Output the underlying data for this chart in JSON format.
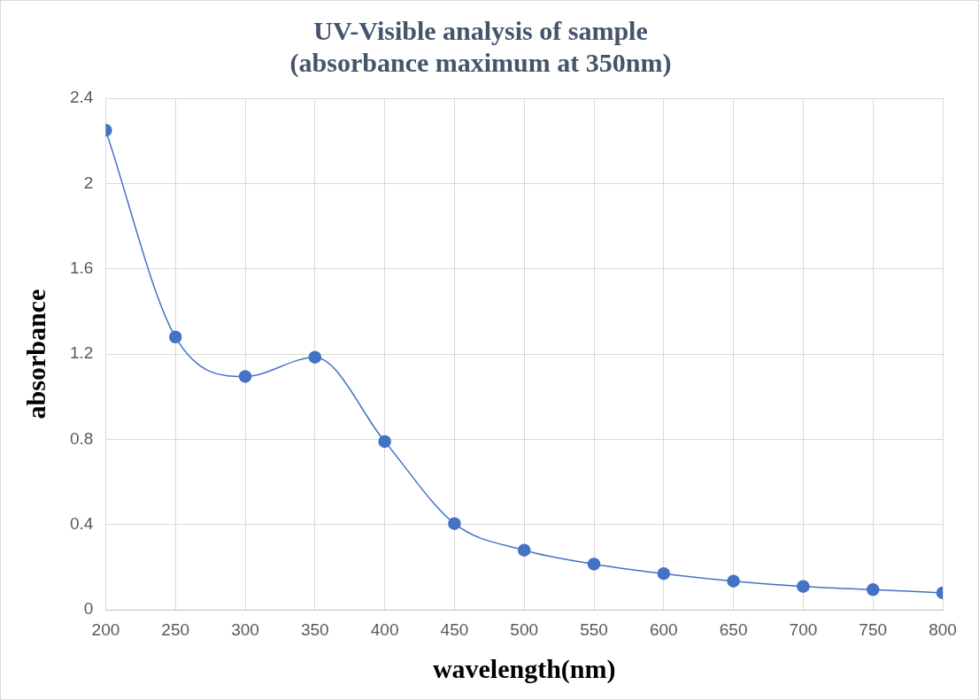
{
  "chart_data": {
    "type": "line",
    "title": "UV-Visible analysis of sample\n(absorbance maximum at 350nm)",
    "xlabel": "wavelength(nm)",
    "ylabel": "absorbance",
    "x": [
      200,
      250,
      300,
      350,
      400,
      450,
      500,
      550,
      600,
      650,
      700,
      750,
      800
    ],
    "series": [
      {
        "color": "#4472c4",
        "values": [
          2.25,
          1.28,
          1.095,
          1.185,
          0.79,
          0.405,
          0.28,
          0.215,
          0.17,
          0.135,
          0.11,
          0.095,
          0.08
        ]
      }
    ],
    "xlim": [
      200,
      800
    ],
    "xticks": [
      200,
      250,
      300,
      350,
      400,
      450,
      500,
      550,
      600,
      650,
      700,
      750,
      800
    ],
    "ylim": [
      0,
      2.4
    ],
    "yticks": [
      0,
      0.4,
      0.8,
      1.2,
      1.6,
      2,
      2.4
    ],
    "grid": true,
    "legend": false,
    "marker": "circle",
    "line_style": "solid"
  }
}
